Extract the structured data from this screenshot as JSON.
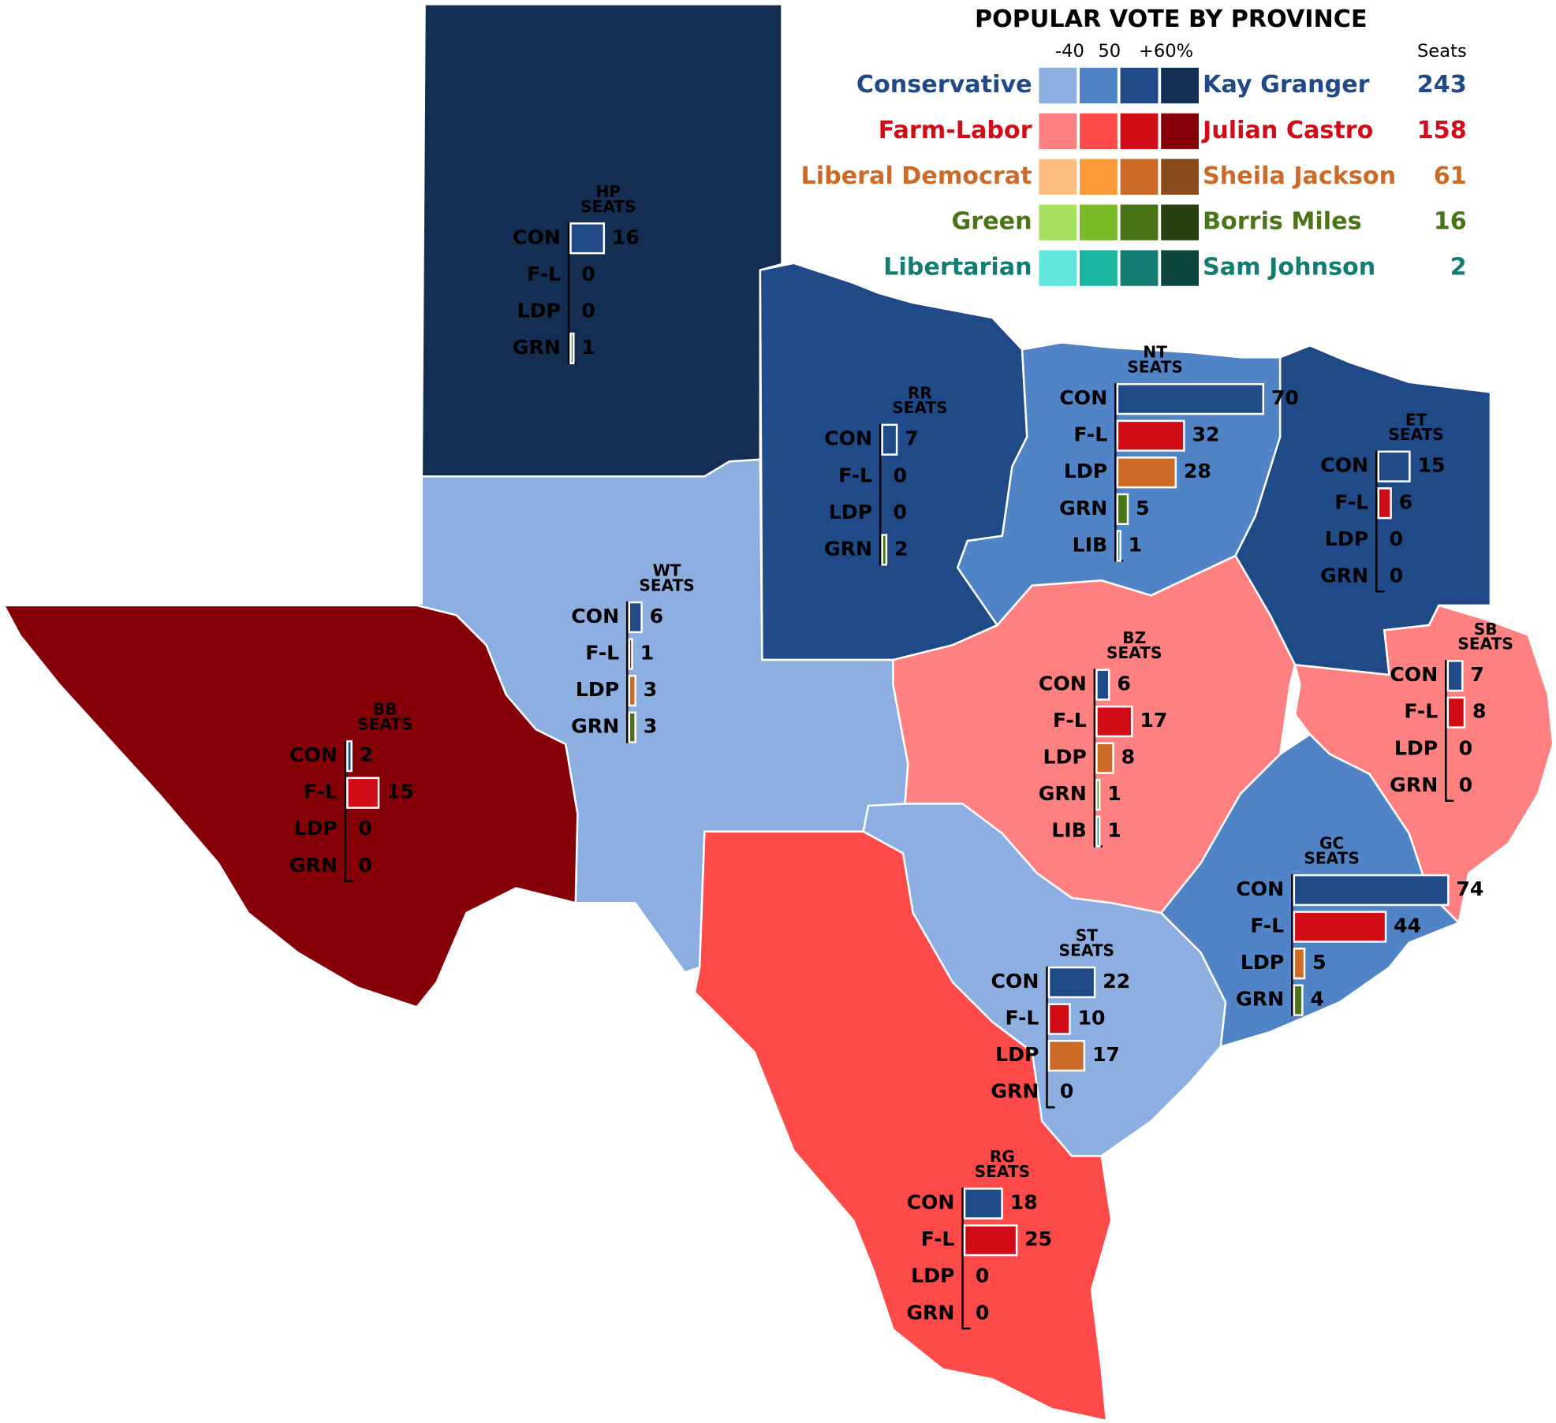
{
  "legend": {
    "title": "POPULAR VOTE BY PROVINCE",
    "scale_labels": [
      "-40",
      "50",
      "+60%"
    ],
    "seats_header": "Seats",
    "parties": [
      {
        "name": "Conservative",
        "leader": "Kay Granger",
        "seats": 243,
        "text_color": "#1f4a87",
        "shades": [
          "#8daee0",
          "#5084c6",
          "#1f4a87",
          "#142d52"
        ]
      },
      {
        "name": "Farm-Labor",
        "leader": "Julian Castro",
        "seats": 158,
        "text_color": "#d10c16",
        "shades": [
          "#ff8080",
          "#ff4a4a",
          "#d10c16",
          "#860008"
        ]
      },
      {
        "name": "Liberal Democrat",
        "leader": "Sheila Jackson",
        "seats": 61,
        "text_color": "#cc6a28",
        "shades": [
          "#ffbe80",
          "#ff9a3a",
          "#cc6a28",
          "#8b4a1b"
        ]
      },
      {
        "name": "Green",
        "leader": "Borris Miles",
        "seats": 16,
        "text_color": "#4a7418",
        "shades": [
          "#a8e060",
          "#78ba28",
          "#4a7418",
          "#2a4010"
        ]
      },
      {
        "name": "Libertarian",
        "leader": "Sam Johnson",
        "seats": 2,
        "text_color": "#137d72",
        "shades": [
          "#60e6dc",
          "#1ab5a0",
          "#137d72",
          "#0c463f"
        ]
      }
    ]
  },
  "bar_colors": {
    "CON": "#1f4a87",
    "F-L": "#d10c16",
    "LDP": "#cc6a28",
    "GRN": "#4a7418",
    "LIB": "#137d72"
  },
  "provinces": [
    {
      "code": "HP",
      "seats_label": "SEATS",
      "color": "#142d52",
      "rows": [
        {
          "party": "CON",
          "seats": 16
        },
        {
          "party": "F-L",
          "seats": 0
        },
        {
          "party": "LDP",
          "seats": 0
        },
        {
          "party": "GRN",
          "seats": 1
        }
      ]
    },
    {
      "code": "RR",
      "seats_label": "SEATS",
      "color": "#1f4a87",
      "rows": [
        {
          "party": "CON",
          "seats": 7
        },
        {
          "party": "F-L",
          "seats": 0
        },
        {
          "party": "LDP",
          "seats": 0
        },
        {
          "party": "GRN",
          "seats": 2
        }
      ]
    },
    {
      "code": "NT",
      "seats_label": "SEATS",
      "color": "#5084c6",
      "rows": [
        {
          "party": "CON",
          "seats": 70
        },
        {
          "party": "F-L",
          "seats": 32
        },
        {
          "party": "LDP",
          "seats": 28
        },
        {
          "party": "GRN",
          "seats": 5
        },
        {
          "party": "LIB",
          "seats": 1
        }
      ]
    },
    {
      "code": "ET",
      "seats_label": "SEATS",
      "color": "#1f4a87",
      "rows": [
        {
          "party": "CON",
          "seats": 15
        },
        {
          "party": "F-L",
          "seats": 6
        },
        {
          "party": "LDP",
          "seats": 0
        },
        {
          "party": "GRN",
          "seats": 0
        }
      ]
    },
    {
      "code": "WT",
      "seats_label": "SEATS",
      "color": "#8daee0",
      "rows": [
        {
          "party": "CON",
          "seats": 6
        },
        {
          "party": "F-L",
          "seats": 1
        },
        {
          "party": "LDP",
          "seats": 3
        },
        {
          "party": "GRN",
          "seats": 3
        }
      ]
    },
    {
      "code": "BB",
      "seats_label": "SEATS",
      "color": "#860008",
      "rows": [
        {
          "party": "CON",
          "seats": 2
        },
        {
          "party": "F-L",
          "seats": 15
        },
        {
          "party": "LDP",
          "seats": 0
        },
        {
          "party": "GRN",
          "seats": 0
        }
      ]
    },
    {
      "code": "BZ",
      "seats_label": "SEATS",
      "color": "#ff8080",
      "rows": [
        {
          "party": "CON",
          "seats": 6
        },
        {
          "party": "F-L",
          "seats": 17
        },
        {
          "party": "LDP",
          "seats": 8
        },
        {
          "party": "GRN",
          "seats": 1
        },
        {
          "party": "LIB",
          "seats": 1
        }
      ]
    },
    {
      "code": "SB",
      "seats_label": "SEATS",
      "color": "#ff8080",
      "rows": [
        {
          "party": "CON",
          "seats": 7
        },
        {
          "party": "F-L",
          "seats": 8
        },
        {
          "party": "LDP",
          "seats": 0
        },
        {
          "party": "GRN",
          "seats": 0
        }
      ]
    },
    {
      "code": "GC",
      "seats_label": "SEATS",
      "color": "#5084c6",
      "rows": [
        {
          "party": "CON",
          "seats": 74
        },
        {
          "party": "F-L",
          "seats": 44
        },
        {
          "party": "LDP",
          "seats": 5
        },
        {
          "party": "GRN",
          "seats": 4
        }
      ]
    },
    {
      "code": "ST",
      "seats_label": "SEATS",
      "color": "#8daee0",
      "rows": [
        {
          "party": "CON",
          "seats": 22
        },
        {
          "party": "F-L",
          "seats": 10
        },
        {
          "party": "LDP",
          "seats": 17
        },
        {
          "party": "GRN",
          "seats": 0
        }
      ]
    },
    {
      "code": "RG",
      "seats_label": "SEATS",
      "color": "#ff4a4a",
      "rows": [
        {
          "party": "CON",
          "seats": 18
        },
        {
          "party": "F-L",
          "seats": 25
        },
        {
          "party": "LDP",
          "seats": 0
        },
        {
          "party": "GRN",
          "seats": 0
        }
      ]
    }
  ]
}
